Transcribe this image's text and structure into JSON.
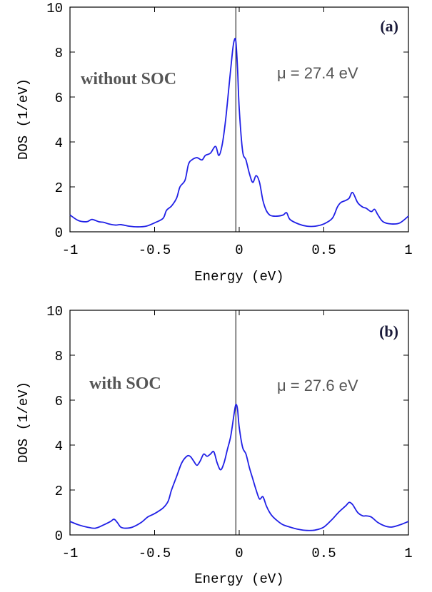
{
  "chart_data": [
    {
      "type": "line",
      "panel_label": "(a)",
      "annotation": "without SOC",
      "mu_text": "μ = 27.4 eV",
      "xlabel": "Energy (eV)",
      "ylabel": "DOS (1/eV)",
      "xlim": [
        -1,
        1
      ],
      "ylim": [
        0,
        10
      ],
      "x_ticks": [
        -1,
        -0.5,
        0,
        0.5,
        1
      ],
      "x_tick_labels": [
        "-1",
        "-0.5",
        "0",
        "0.5",
        "1"
      ],
      "y_ticks": [
        0,
        2,
        4,
        6,
        8,
        10
      ],
      "y_tick_labels": [
        "0",
        "2",
        "4",
        "6",
        "8",
        "10"
      ],
      "vline_x": -0.02,
      "line_color": "#1f1fe6",
      "series": [
        {
          "x": [
            -1.0,
            -0.95,
            -0.9,
            -0.87,
            -0.83,
            -0.8,
            -0.77,
            -0.73,
            -0.7,
            -0.65,
            -0.6,
            -0.55,
            -0.5,
            -0.45,
            -0.43,
            -0.4,
            -0.37,
            -0.35,
            -0.32,
            -0.3,
            -0.28,
            -0.25,
            -0.22,
            -0.2,
            -0.17,
            -0.14,
            -0.12,
            -0.1,
            -0.08,
            -0.06,
            -0.04,
            -0.03,
            -0.02,
            -0.01,
            0.0,
            0.02,
            0.04,
            0.06,
            0.08,
            0.1,
            0.12,
            0.14,
            0.16,
            0.18,
            0.2,
            0.23,
            0.26,
            0.28,
            0.3,
            0.35,
            0.4,
            0.45,
            0.5,
            0.55,
            0.58,
            0.6,
            0.63,
            0.65,
            0.67,
            0.7,
            0.73,
            0.75,
            0.78,
            0.8,
            0.82,
            0.85,
            0.9,
            0.95,
            1.0
          ],
          "y": [
            0.75,
            0.5,
            0.45,
            0.55,
            0.45,
            0.42,
            0.35,
            0.3,
            0.32,
            0.25,
            0.22,
            0.25,
            0.4,
            0.6,
            0.95,
            1.15,
            1.5,
            2.0,
            2.3,
            3.0,
            3.2,
            3.3,
            3.2,
            3.4,
            3.5,
            3.8,
            3.4,
            3.9,
            5.0,
            6.5,
            8.0,
            8.5,
            8.5,
            7.3,
            5.5,
            3.6,
            3.2,
            2.6,
            2.2,
            2.5,
            2.2,
            1.4,
            0.95,
            0.75,
            0.7,
            0.7,
            0.75,
            0.85,
            0.55,
            0.35,
            0.25,
            0.25,
            0.35,
            0.6,
            1.1,
            1.3,
            1.4,
            1.5,
            1.75,
            1.3,
            1.1,
            1.05,
            0.9,
            1.0,
            0.75,
            0.45,
            0.35,
            0.4,
            0.7
          ]
        }
      ]
    },
    {
      "type": "line",
      "panel_label": "(b)",
      "annotation": "with SOC",
      "mu_text": "μ = 27.6 eV",
      "xlabel": "Energy (eV)",
      "ylabel": "DOS (1/eV)",
      "xlim": [
        -1,
        1
      ],
      "ylim": [
        0,
        10
      ],
      "x_ticks": [
        -1,
        -0.5,
        0,
        0.5,
        1
      ],
      "x_tick_labels": [
        "-1",
        "-0.5",
        "0",
        "0.5",
        "1"
      ],
      "y_ticks": [
        0,
        2,
        4,
        6,
        8,
        10
      ],
      "y_tick_labels": [
        "0",
        "2",
        "4",
        "6",
        "8",
        "10"
      ],
      "vline_x": -0.02,
      "line_color": "#1f1fe6",
      "series": [
        {
          "x": [
            -1.0,
            -0.95,
            -0.9,
            -0.85,
            -0.8,
            -0.76,
            -0.74,
            -0.72,
            -0.7,
            -0.67,
            -0.63,
            -0.58,
            -0.54,
            -0.5,
            -0.45,
            -0.42,
            -0.4,
            -0.37,
            -0.34,
            -0.31,
            -0.29,
            -0.27,
            -0.25,
            -0.23,
            -0.21,
            -0.19,
            -0.17,
            -0.15,
            -0.13,
            -0.11,
            -0.09,
            -0.07,
            -0.05,
            -0.03,
            -0.02,
            -0.01,
            0.0,
            0.02,
            0.04,
            0.06,
            0.08,
            0.1,
            0.12,
            0.14,
            0.16,
            0.18,
            0.2,
            0.23,
            0.26,
            0.3,
            0.35,
            0.4,
            0.45,
            0.5,
            0.55,
            0.58,
            0.6,
            0.63,
            0.65,
            0.67,
            0.7,
            0.73,
            0.75,
            0.78,
            0.82,
            0.86,
            0.9,
            0.95,
            1.0
          ],
          "y": [
            0.6,
            0.45,
            0.35,
            0.3,
            0.45,
            0.6,
            0.7,
            0.55,
            0.35,
            0.3,
            0.35,
            0.55,
            0.8,
            0.95,
            1.2,
            1.5,
            2.0,
            2.6,
            3.2,
            3.5,
            3.5,
            3.3,
            3.1,
            3.3,
            3.6,
            3.5,
            3.6,
            3.7,
            3.2,
            2.9,
            3.2,
            3.8,
            4.4,
            5.4,
            5.8,
            5.6,
            4.8,
            3.9,
            3.6,
            3.0,
            2.5,
            2.0,
            1.6,
            1.7,
            1.3,
            1.0,
            0.8,
            0.6,
            0.45,
            0.35,
            0.25,
            0.2,
            0.22,
            0.35,
            0.7,
            0.95,
            1.1,
            1.3,
            1.45,
            1.35,
            1.0,
            0.85,
            0.85,
            0.8,
            0.55,
            0.4,
            0.35,
            0.45,
            0.6
          ]
        }
      ]
    }
  ]
}
